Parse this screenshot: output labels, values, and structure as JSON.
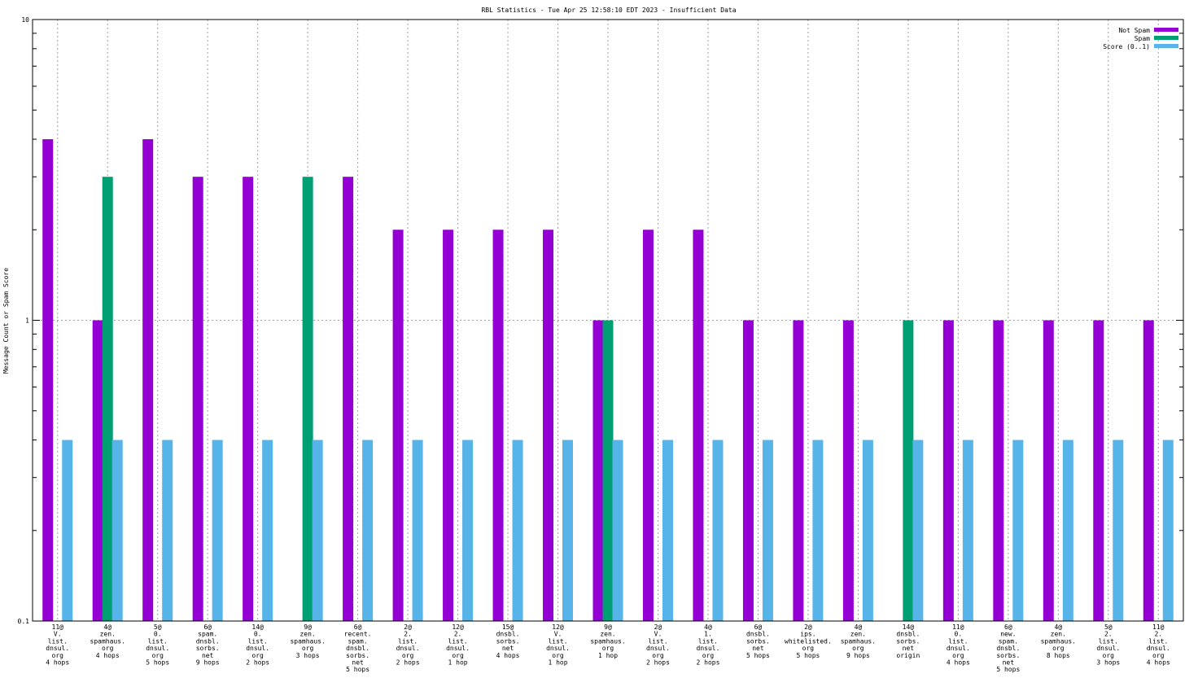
{
  "chart_data": {
    "type": "bar",
    "title": "RBL Statistics - Tue Apr 25 12:58:10 EDT 2023 - Insufficient Data",
    "ylabel": "Message Count or Spam Score",
    "xlabel": "",
    "y_scale": "log",
    "ylim": [
      0.1,
      10
    ],
    "y_ticks": [
      {
        "value": 0.1,
        "label": "0.1"
      },
      {
        "value": 1,
        "label": "1"
      },
      {
        "value": 10,
        "label": "10"
      }
    ],
    "grid": true,
    "legend_position": "top-right",
    "categories": [
      [
        "11@",
        "V.",
        "list.",
        "dnsul.",
        "org",
        "4 hops"
      ],
      [
        "4@",
        "zen.",
        "spamhaus.",
        "org",
        "4 hops"
      ],
      [
        "5@",
        "0.",
        "list.",
        "dnsul.",
        "org",
        "5 hops"
      ],
      [
        "6@",
        "spam.",
        "dnsbl.",
        "sorbs.",
        "net",
        "9 hops"
      ],
      [
        "14@",
        "0.",
        "list.",
        "dnsul.",
        "org",
        "2 hops"
      ],
      [
        "9@",
        "zen.",
        "spamhaus.",
        "org",
        "3 hops"
      ],
      [
        "6@",
        "recent.",
        "spam.",
        "dnsbl.",
        "sorbs.",
        "net",
        "5 hops"
      ],
      [
        "2@",
        "2.",
        "list.",
        "dnsul.",
        "org",
        "2 hops"
      ],
      [
        "12@",
        "2.",
        "list.",
        "dnsul.",
        "org",
        "1 hop"
      ],
      [
        "15@",
        "dnsbl.",
        "sorbs.",
        "net",
        "4 hops"
      ],
      [
        "12@",
        "V.",
        "list.",
        "dnsul.",
        "org",
        "1 hop"
      ],
      [
        "9@",
        "zen.",
        "spamhaus.",
        "org",
        "1 hop"
      ],
      [
        "2@",
        "V.",
        "list.",
        "dnsul.",
        "org",
        "2 hops"
      ],
      [
        "4@",
        "1.",
        "list.",
        "dnsul.",
        "org",
        "2 hops"
      ],
      [
        "6@",
        "dnsbl.",
        "sorbs.",
        "net",
        "5 hops"
      ],
      [
        "2@",
        "ips.",
        "whitelisted.",
        "org",
        "5 hops"
      ],
      [
        "4@",
        "zen.",
        "spamhaus.",
        "org",
        "9 hops"
      ],
      [
        "14@",
        "dnsbl.",
        "sorbs.",
        "net",
        "origin"
      ],
      [
        "11@",
        "0.",
        "list.",
        "dnsul.",
        "org",
        "4 hops"
      ],
      [
        "6@",
        "new.",
        "spam.",
        "dnsbl.",
        "sorbs.",
        "net",
        "5 hops"
      ],
      [
        "4@",
        "zen.",
        "spamhaus.",
        "org",
        "8 hops"
      ],
      [
        "5@",
        "2.",
        "list.",
        "dnsul.",
        "org",
        "3 hops"
      ],
      [
        "11@",
        "2.",
        "list.",
        "dnsul.",
        "org",
        "4 hops"
      ]
    ],
    "series": [
      {
        "name": "Not Spam",
        "color": "#9400d3",
        "values": [
          4,
          1,
          4,
          3,
          3,
          null,
          3,
          2,
          2,
          2,
          2,
          1,
          2,
          2,
          1,
          1,
          1,
          null,
          1,
          1,
          1,
          1,
          1
        ]
      },
      {
        "name": "Spam",
        "color": "#009e73",
        "values": [
          null,
          3,
          null,
          null,
          null,
          3,
          null,
          null,
          null,
          null,
          null,
          1,
          null,
          null,
          null,
          null,
          null,
          1,
          null,
          null,
          null,
          null,
          null
        ]
      },
      {
        "name": "Score (0..1)",
        "color": "#56b4e9",
        "values": [
          0.4,
          0.4,
          0.4,
          0.4,
          0.4,
          0.4,
          0.4,
          0.4,
          0.4,
          0.4,
          0.4,
          0.4,
          0.4,
          0.4,
          0.4,
          0.4,
          0.4,
          0.4,
          0.4,
          0.4,
          0.4,
          0.4,
          0.4
        ]
      }
    ]
  }
}
